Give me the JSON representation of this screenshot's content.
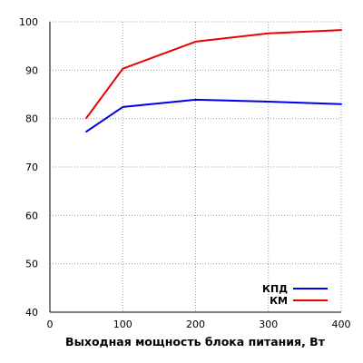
{
  "chart_data": {
    "type": "line",
    "xlabel": "Выходная мощность блока питания, Вт",
    "ylabel": "",
    "xlim": [
      0,
      400
    ],
    "ylim": [
      40,
      100
    ],
    "x_ticks": [
      "0",
      "100",
      "200",
      "300",
      "400"
    ],
    "y_ticks": [
      "40",
      "50",
      "60",
      "70",
      "80",
      "90",
      "100"
    ],
    "grid": true,
    "legend_position": "bottom-right",
    "series": [
      {
        "name": "КПД",
        "color": "#0000ee",
        "x": [
          50,
          100,
          200,
          300,
          400
        ],
        "y": [
          77.3,
          82.4,
          83.9,
          83.5,
          83.0
        ]
      },
      {
        "name": "КМ",
        "color": "#ee0000",
        "x": [
          50,
          100,
          200,
          300,
          400
        ],
        "y": [
          80.1,
          90.3,
          95.9,
          97.6,
          98.3
        ]
      }
    ]
  }
}
